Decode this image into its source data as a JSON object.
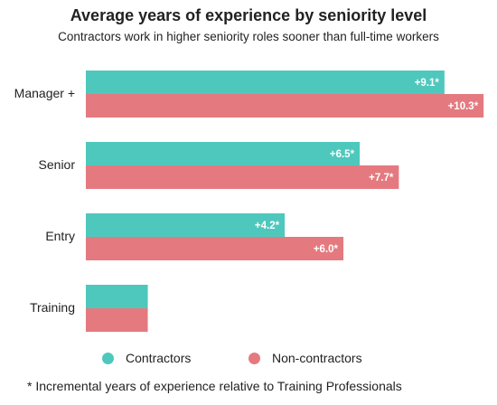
{
  "title": "Average years of experience by seniority level",
  "subtitle": "Contractors work in higher seniority roles sooner than full-time workers",
  "footnote": "* Incremental years of experience relative to Training Professionals",
  "colors": {
    "contractors": "#4ec8bd",
    "non_contractors": "#e47a7f"
  },
  "chart_data": {
    "type": "bar",
    "orientation": "horizontal",
    "categories": [
      "Manager +",
      "Senior",
      "Entry",
      "Training"
    ],
    "series": [
      {
        "name": "Contractors",
        "values": [
          11.0,
          8.4,
          6.1,
          1.9
        ],
        "labels": [
          "+9.1*",
          "+6.5*",
          "+4.2*",
          ""
        ]
      },
      {
        "name": "Non-contractors",
        "values": [
          12.2,
          9.6,
          7.9,
          1.9
        ],
        "labels": [
          "+10.3*",
          "+7.7*",
          "+6.0*",
          ""
        ]
      }
    ],
    "xlim": [
      0,
      12.5
    ],
    "grid": false,
    "x_axis_visible": false,
    "legend_placement": "bottom-center"
  },
  "legend": {
    "items": [
      "Contractors",
      "Non-contractors"
    ]
  }
}
